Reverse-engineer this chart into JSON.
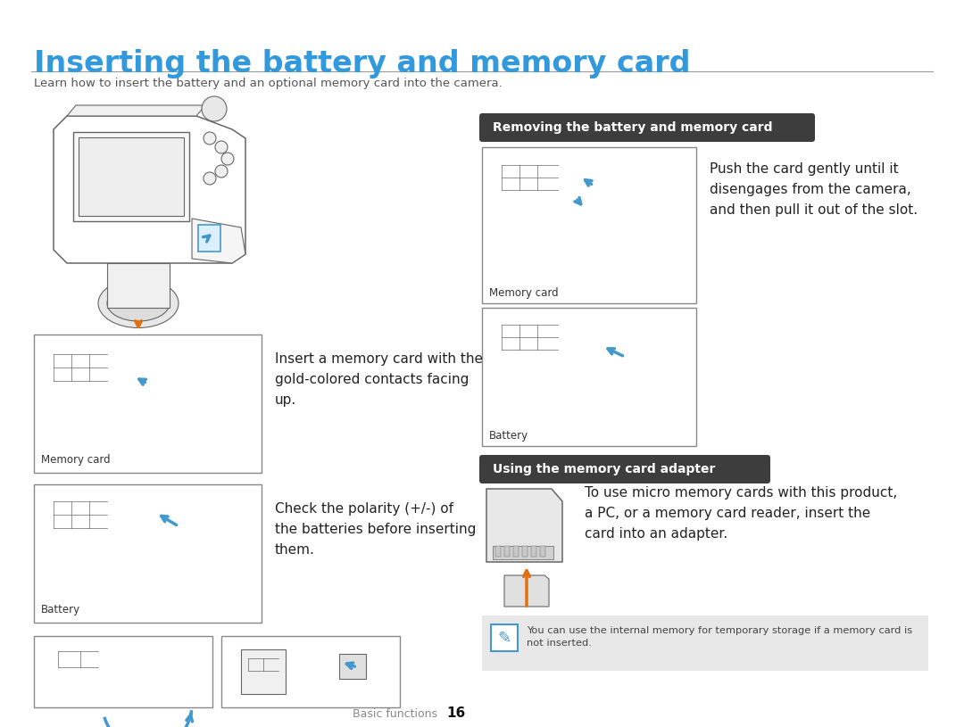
{
  "title": "Inserting the battery and memory card",
  "subtitle": "Learn how to insert the battery and an optional memory card into the camera.",
  "title_color": "#3399DD",
  "title_fontsize": 24,
  "subtitle_fontsize": 9.5,
  "subtitle_color": "#555555",
  "bg_color": "#ffffff",
  "section_label1": "Removing the battery and memory card",
  "section_label2": "Using the memory card adapter",
  "section_label_bg": "#3d3d3d",
  "section_label_color": "#ffffff",
  "text1": "Insert a memory card with the\ngold-colored contacts facing\nup.",
  "text2": "Check the polarity (+/-) of\nthe batteries before inserting\nthem.",
  "text3": "Push the card gently until it\ndisengages from the camera,\nand then pull it out of the slot.",
  "text4": "To use micro memory cards with this product,\na PC, or a memory card reader, insert the\ncard into an adapter.",
  "label_memory": "Memory card",
  "label_battery": "Battery",
  "note_text": "You can use the internal memory for temporary storage if a memory card is\nnot inserted.",
  "note_bg": "#e8e8e8",
  "footer_text": "Basic functions",
  "footer_page": "16",
  "blue_color": "#4499CC",
  "orange_color": "#E07010",
  "sketch_color": "#666666",
  "sketch_lw": 0.8
}
